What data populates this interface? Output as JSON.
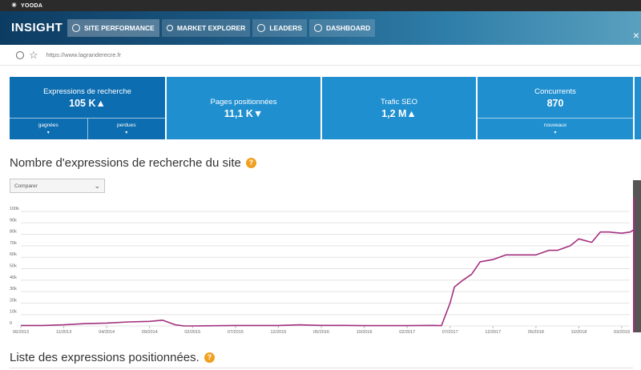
{
  "topbar": {
    "logo_text": "YOODA"
  },
  "header": {
    "brand": "INSIGHT",
    "tabs": [
      {
        "label": "SITE PERFORMANCE",
        "icon": "performance-icon",
        "active": true
      },
      {
        "label": "MARKET EXPLORER",
        "icon": "search-icon",
        "active": false
      },
      {
        "label": "LEADERS",
        "icon": "globe-icon",
        "active": false
      },
      {
        "label": "DASHBOARD",
        "icon": "gauge-icon",
        "active": false
      }
    ],
    "close_glyph": "×"
  },
  "urlbar": {
    "url": "https://www.lagranderecre.fr"
  },
  "cards": [
    {
      "label": "Expressions de recherche",
      "value": "105 K▲",
      "active": true,
      "sub": [
        "gagnées",
        "perdues"
      ]
    },
    {
      "label": "Pages positionnées",
      "value": "11,1 K▼",
      "active": false,
      "sub": []
    },
    {
      "label": "Trafic SEO",
      "value": "1,2 M▲",
      "active": false,
      "sub": []
    },
    {
      "label": "Concurrents",
      "value": "870",
      "active": false,
      "sub": [
        "nouveaux"
      ]
    }
  ],
  "section1": {
    "title": "Nombre d'expressions de recherche du site",
    "help": "?"
  },
  "compare_select": {
    "value": "Comparer"
  },
  "section2": {
    "title": "Liste des expressions positionnées.",
    "help": "?"
  },
  "colors": {
    "line": "#a3307f",
    "card": "#1f8fd0",
    "card_active": "#0d6db1"
  },
  "chart_data": {
    "type": "line",
    "title": "",
    "xlabel": "",
    "ylabel": "",
    "ylim": [
      0,
      100
    ],
    "yticks": [
      "0",
      "10k",
      "20k",
      "30k",
      "40k",
      "50k",
      "60k",
      "70k",
      "80k",
      "90k",
      "100k"
    ],
    "xticks": [
      "06/2013",
      "11/2013",
      "04/2014",
      "09/2014",
      "02/2015",
      "07/2015",
      "12/2015",
      "05/2016",
      "10/2016",
      "02/2017",
      "07/2017",
      "12/2017",
      "05/2018",
      "10/2018",
      "03/2019"
    ],
    "grid": true,
    "series": [
      {
        "name": "",
        "color": "#a3307f",
        "x": [
          0,
          0.5,
          1,
          1.5,
          2,
          2.5,
          3,
          3.3,
          3.6,
          3.8,
          4,
          5,
          6,
          6.5,
          7,
          7.5,
          8,
          9,
          9.6,
          9.8,
          10,
          10.1,
          10.3,
          10.5,
          10.7,
          11,
          11.3,
          11.5,
          11.7,
          12,
          12.3,
          12.5,
          12.8,
          13,
          13.3,
          13.5,
          13.7,
          14,
          14.2,
          14.4
        ],
        "values": [
          0.4,
          0.4,
          1,
          2,
          2.5,
          3.5,
          4,
          5,
          1,
          0,
          0,
          0.4,
          0.4,
          1,
          0.5,
          0.5,
          0.3,
          0.3,
          0.5,
          0.3,
          20,
          34,
          40,
          45,
          56,
          58,
          62,
          62,
          62,
          62,
          66,
          66,
          70,
          76,
          73,
          82,
          82,
          81,
          82,
          87
        ]
      }
    ]
  }
}
